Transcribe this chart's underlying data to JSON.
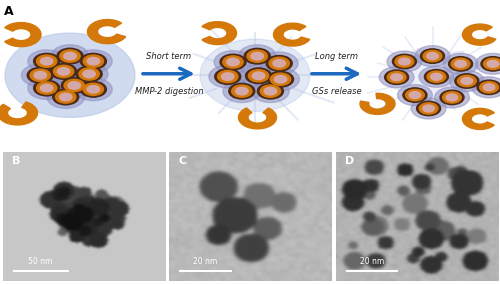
{
  "fig_width": 5.0,
  "fig_height": 2.84,
  "dpi": 100,
  "background_color": "#ffffff",
  "panel_a_label": "A",
  "panel_b_label": "B",
  "panel_c_label": "C",
  "panel_d_label": "D",
  "arrow1_text_top": "Short term",
  "arrow1_text_bot": "MMP-2 digestion",
  "arrow2_text_top": "Long term",
  "arrow2_text_bot": "GSs release",
  "scale_bar_b": "50 nm",
  "scale_bar_c": "20 nm",
  "scale_bar_d": "20 nm",
  "arrow_color": "#1b6abf",
  "orange_color": "#d4780a",
  "blue_light": "#b8c8e8",
  "blue_medium": "#8899cc",
  "blue_purple": "#9090c0",
  "pink_color": "#d4a8a8",
  "dark_brown": "#4a2a18",
  "tem_b_bg": "#c8c8c8",
  "tem_c_bg": "#b0b0b0",
  "tem_d_bg": "#b8b8b8",
  "label_fontsize": 8,
  "text_fontsize": 6.0,
  "scalebar_fontsize": 5.5
}
